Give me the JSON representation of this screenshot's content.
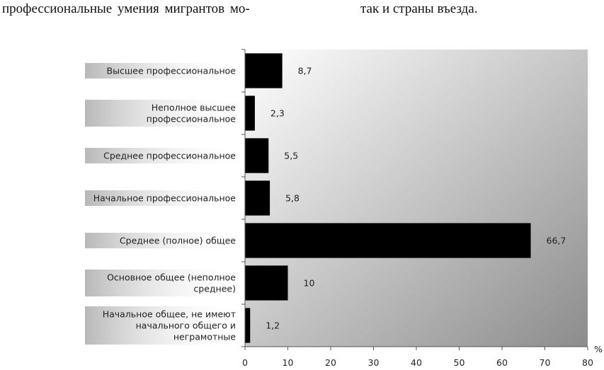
{
  "text": {
    "left": "профессиональные умения мигрантов мо-",
    "right": "так и страны въезда."
  },
  "colors": {
    "bar": "#000000",
    "plot_gradient_start": "#ffffff",
    "plot_gradient_end": "#8c8c8c",
    "label_bg": "#b8b8b8"
  },
  "chart_data": {
    "type": "bar",
    "orientation": "horizontal",
    "categories": [
      [
        "Высшее профессиональное"
      ],
      [
        "Неполное высшее",
        "профессиональное"
      ],
      [
        "Среднее профессиональное"
      ],
      [
        "Начальное профессиональное"
      ],
      [
        "Среднее (полное) общее"
      ],
      [
        "Основное общее (неполное",
        "среднее)"
      ],
      [
        "Начальное общее, не имеют",
        "начального общего и",
        "неграмотные"
      ]
    ],
    "values": [
      8.7,
      2.3,
      5.5,
      5.8,
      66.7,
      10,
      1.2
    ],
    "value_labels": [
      "8,7",
      "2,3",
      "5,5",
      "5,8",
      "66,7",
      "10",
      "1,2"
    ],
    "xlim": [
      0,
      80
    ],
    "xticks": [
      "0",
      "10",
      "20",
      "30",
      "40",
      "50",
      "60",
      "70",
      "80"
    ],
    "unit_label": "%",
    "grid": false
  }
}
